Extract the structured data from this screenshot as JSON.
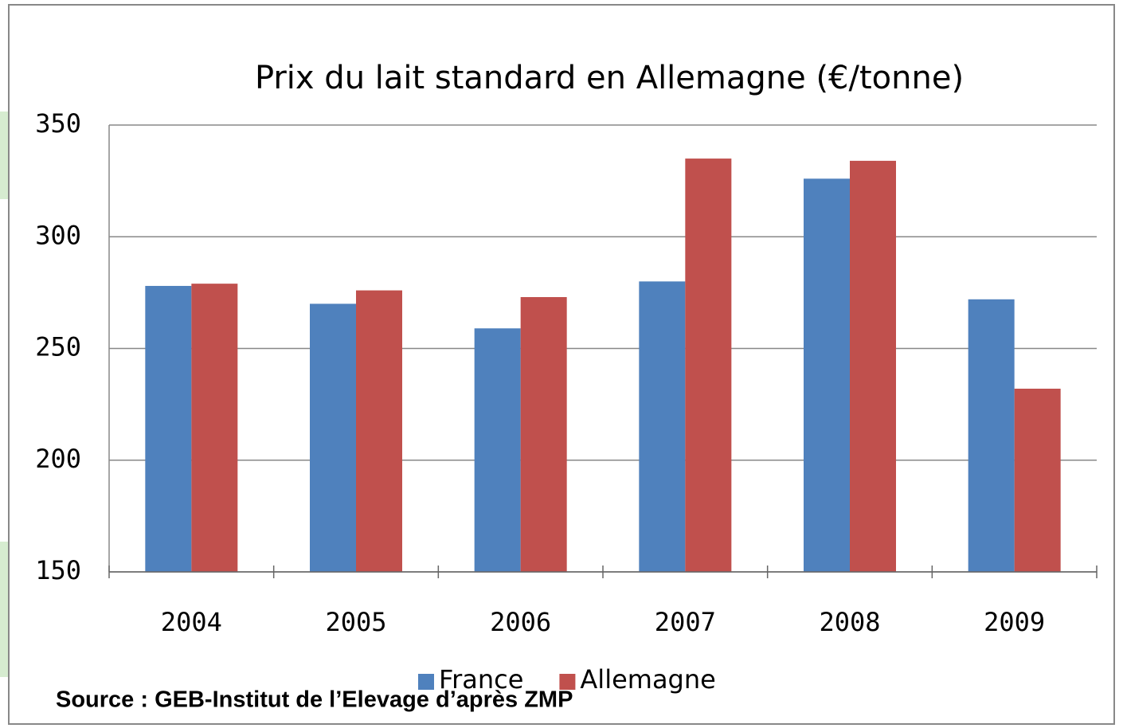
{
  "chart_data": {
    "type": "bar",
    "title": "Prix du lait standard  en Allemagne (€/tonne)",
    "categories": [
      "2004",
      "2005",
      "2006",
      "2007",
      "2008",
      "2009"
    ],
    "series": [
      {
        "name": "France",
        "color": "#4f81bd",
        "values": [
          278,
          270,
          259,
          280,
          326,
          272
        ]
      },
      {
        "name": "Allemagne",
        "color": "#c0504d",
        "values": [
          279,
          276,
          273,
          335,
          334,
          232
        ]
      }
    ],
    "ylim": [
      150,
      350
    ],
    "yticks": [
      150,
      200,
      250,
      300,
      350
    ],
    "grid": true,
    "legend": "bottom"
  },
  "source": "Source : GEB-Institut de l’Elevage d’après ZMP"
}
